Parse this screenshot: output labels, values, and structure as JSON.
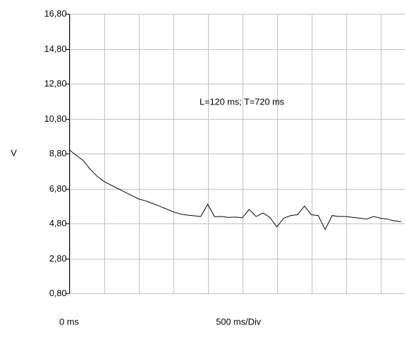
{
  "chart_data": {
    "type": "line",
    "annotation": "L=120 ms; T=720 ms",
    "ylabel": "V",
    "xlabel": "500 ms/Div",
    "x_origin_label": "0 ms",
    "x": [
      0,
      100,
      200,
      300,
      400,
      500,
      600,
      700,
      800,
      900,
      1000,
      1100,
      1200,
      1300,
      1400,
      1500,
      1600,
      1700,
      1800,
      1900,
      2000,
      2100,
      2200,
      2300,
      2400,
      2500,
      2600,
      2700,
      2800,
      2900,
      3000,
      3100,
      3200,
      3300,
      3400,
      3500,
      3600,
      3700,
      3800,
      3900,
      4000,
      4100,
      4200,
      4300,
      4400,
      4500,
      4600,
      4700,
      4800
    ],
    "series": [
      {
        "color": "#000000",
        "values": [
          9.0,
          8.7,
          8.4,
          7.9,
          7.5,
          7.2,
          7.0,
          6.8,
          6.6,
          6.4,
          6.2,
          6.1,
          5.95,
          5.8,
          5.63,
          5.47,
          5.35,
          5.28,
          5.24,
          5.2,
          5.9,
          5.18,
          5.2,
          5.15,
          5.17,
          5.12,
          5.6,
          5.2,
          5.4,
          5.15,
          4.6,
          5.1,
          5.25,
          5.3,
          5.8,
          5.3,
          5.25,
          4.45,
          5.25,
          5.2,
          5.2,
          5.15,
          5.1,
          5.05,
          5.2,
          5.1,
          5.05,
          4.95,
          4.9
        ]
      }
    ],
    "xlim": [
      0,
      4860
    ],
    "xticks": [
      0,
      500,
      1000,
      1500,
      2000,
      2500,
      3000,
      3500,
      4000,
      4500
    ],
    "ylim": [
      0.8,
      16.8
    ],
    "yticks": [
      {
        "value": 0.8,
        "label": "0,80"
      },
      {
        "value": 2.8,
        "label": "2,80"
      },
      {
        "value": 4.8,
        "label": "4,80"
      },
      {
        "value": 6.8,
        "label": "6,80"
      },
      {
        "value": 8.8,
        "label": "8,80"
      },
      {
        "value": 10.8,
        "label": "10,80"
      },
      {
        "value": 12.8,
        "label": "12,80"
      },
      {
        "value": 14.8,
        "label": "14,80"
      },
      {
        "value": 16.8,
        "label": "16,80"
      }
    ],
    "grid": true
  }
}
